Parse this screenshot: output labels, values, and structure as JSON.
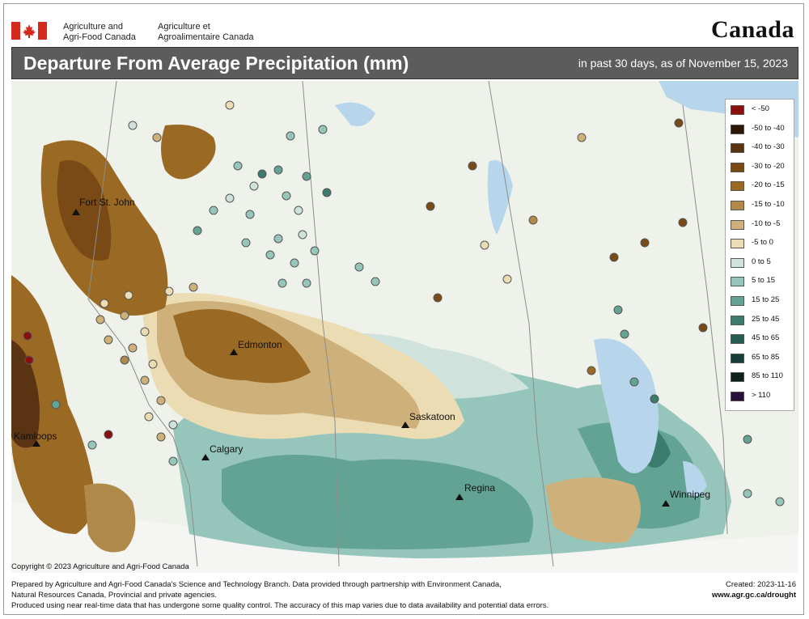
{
  "header": {
    "dept_en": [
      "Agriculture and",
      "Agri-Food Canada"
    ],
    "dept_fr": [
      "Agriculture et",
      "Agroalimentaire Canada"
    ],
    "wordmark": "Canada"
  },
  "title": {
    "main": "Departure From Average Precipitation (mm)",
    "subtitle": "in past 30 days, as of November 15, 2023"
  },
  "cities": [
    {
      "name": "Fort St. John"
    },
    {
      "name": "Edmonton"
    },
    {
      "name": "Kamloops"
    },
    {
      "name": "Calgary"
    },
    {
      "name": "Saskatoon"
    },
    {
      "name": "Regina"
    },
    {
      "name": "Winnipeg"
    }
  ],
  "legend": [
    {
      "label": "< -50",
      "color": "#8b0f0f"
    },
    {
      "label": "-50 to -40",
      "color": "#2e1709"
    },
    {
      "label": "-40 to -30",
      "color": "#5a3412"
    },
    {
      "label": "-30 to -20",
      "color": "#7a4a16"
    },
    {
      "label": "-20 to -15",
      "color": "#9a6a24"
    },
    {
      "label": "-15 to -10",
      "color": "#b08a4a"
    },
    {
      "label": "-10 to -5",
      "color": "#cdb07a"
    },
    {
      "label": "-5 to 0",
      "color": "#ecdcb4"
    },
    {
      "label": "0 to 5",
      "color": "#cfe3dc"
    },
    {
      "label": "5 to 15",
      "color": "#96c6bb"
    },
    {
      "label": "15 to 25",
      "color": "#63a394"
    },
    {
      "label": "25 to 45",
      "color": "#3c7c6e"
    },
    {
      "label": "45 to 65",
      "color": "#285c52"
    },
    {
      "label": "65 to 85",
      "color": "#173f37"
    },
    {
      "label": "85 to 110",
      "color": "#0c211b"
    },
    {
      "label": "> 110",
      "color": "#2a0f3a"
    }
  ],
  "copyright": "Copyright © 2023 Agriculture and Agri-Food Canada",
  "footer": {
    "line1": "Prepared by Agriculture and Agri-Food Canada's Science and Technology Branch. Data provided through partnership with Environment Canada,",
    "line2": "Natural Resources Canada, Provincial and private agencies.",
    "line3": "Produced using near real-time data that has undergone some quality control. The accuracy of this map varies due to data availability and potential data errors."
  },
  "created": {
    "label": "Created:  2023-11-16",
    "url": "www.agr.gc.ca/drought"
  }
}
